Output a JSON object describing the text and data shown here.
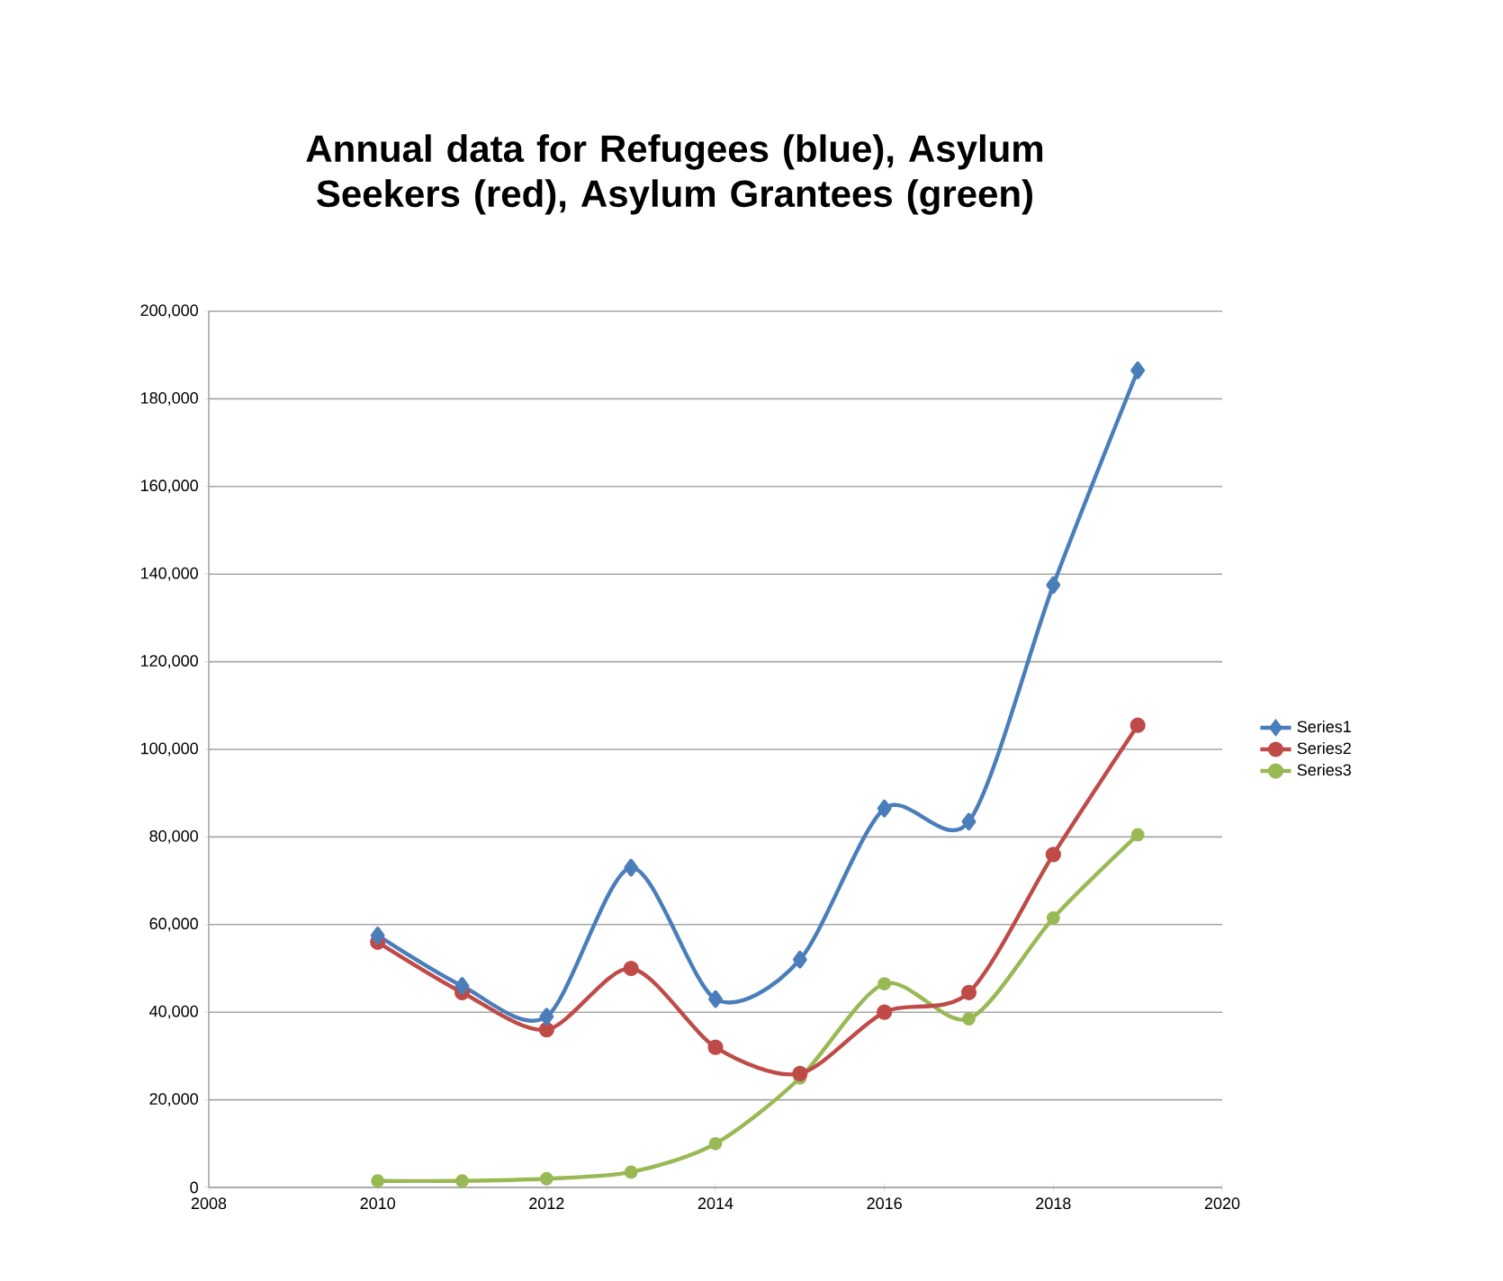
{
  "chart_data": {
    "type": "line",
    "title": "Annual data for Refugees (blue), Asylum Seekers (red), Asylum Grantees (green)",
    "x": [
      2010,
      2011,
      2012,
      2013,
      2014,
      2015,
      2016,
      2017,
      2018,
      2019
    ],
    "series": [
      {
        "name": "Series1",
        "color": "#4a7ebb",
        "marker": "diamond",
        "values": [
          57500,
          46000,
          39000,
          73000,
          43000,
          52000,
          86500,
          83500,
          137500,
          186500
        ]
      },
      {
        "name": "Series2",
        "color": "#be4b48",
        "marker": "circle",
        "values": [
          56000,
          44500,
          36000,
          50000,
          32000,
          26000,
          40000,
          44500,
          76000,
          105500
        ]
      },
      {
        "name": "Series3",
        "color": "#98b954",
        "marker": "circle",
        "values": [
          1500,
          1500,
          2000,
          3500,
          10000,
          25000,
          46500,
          38500,
          61500,
          80500
        ]
      }
    ],
    "xlim": [
      2008,
      2020
    ],
    "xticks": [
      2008,
      2010,
      2012,
      2014,
      2016,
      2018,
      2020
    ],
    "ylim": [
      0,
      200000
    ],
    "yticks": [
      {
        "value": 0,
        "label": "0"
      },
      {
        "value": 20000,
        "label": "20,000"
      },
      {
        "value": 40000,
        "label": "40,000"
      },
      {
        "value": 60000,
        "label": "60,000"
      },
      {
        "value": 80000,
        "label": "80,000"
      },
      {
        "value": 100000,
        "label": "100,000"
      },
      {
        "value": 120000,
        "label": "120,000"
      },
      {
        "value": 140000,
        "label": "140,000"
      },
      {
        "value": 160000,
        "label": "160,000"
      },
      {
        "value": 180000,
        "label": "180,000"
      },
      {
        "value": 200000,
        "label": "200,000"
      }
    ],
    "grid": "y",
    "legend": "right",
    "line_style": "solid"
  }
}
